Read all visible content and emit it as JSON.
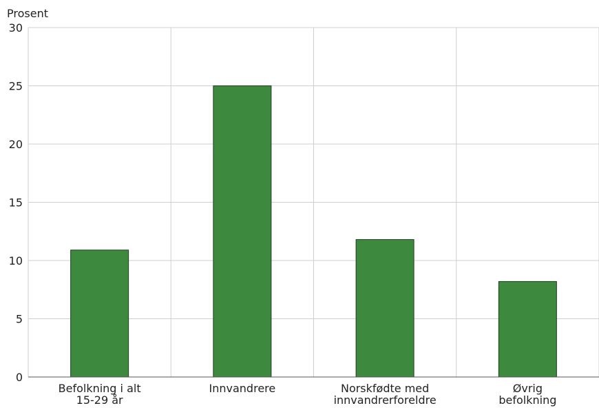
{
  "chart_data": {
    "type": "bar",
    "ylabel": "Prosent",
    "ylim": [
      0,
      30
    ],
    "yticks": [
      0,
      5,
      10,
      15,
      20,
      25,
      30
    ],
    "grid": true,
    "bar_color": "#3d8a3e",
    "categories": [
      [
        "Befolkning i alt",
        "15-29 år"
      ],
      [
        "Innvandrere"
      ],
      [
        "Norskfødte med",
        "innvandrerforeldre"
      ],
      [
        "Øvrig",
        "befolkning"
      ]
    ],
    "values": [
      10.9,
      25.0,
      11.8,
      8.2
    ]
  }
}
